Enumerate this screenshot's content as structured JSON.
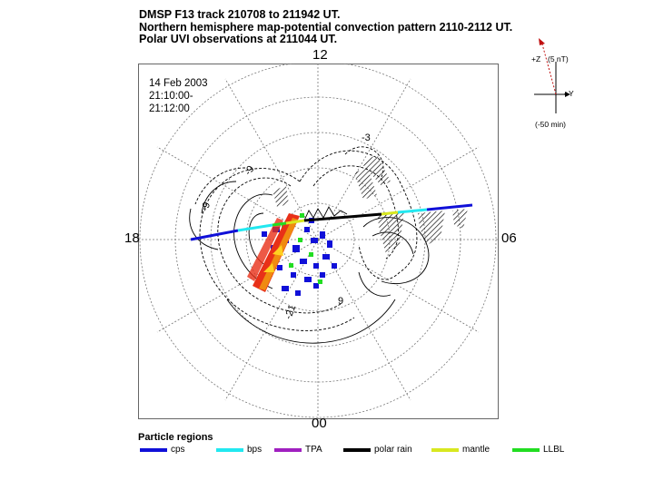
{
  "header": {
    "line1": "DMSP F13 track 210708 to 211942 UT.",
    "line2": "Northern hemisphere map-potential convection pattern 2110-2112 UT.",
    "line3": "Polar UVI observations at 211044 UT."
  },
  "plot": {
    "date": "14 Feb 2003",
    "time_start": "21:10:00-",
    "time_end": "21:12:00",
    "mlt_top": "12",
    "mlt_left": "18",
    "mlt_right": "06",
    "mlt_bottom": "00",
    "contour_labels": [
      "-9",
      "-9",
      "-3",
      "-21",
      "9"
    ],
    "colors": {
      "cps": "#1010d8",
      "bps": "#22e8f0",
      "tpa": "#a020c0",
      "polar_rain": "#000000",
      "mantle": "#d8e820",
      "llbl": "#22dd22",
      "auroral_red": "#e83018",
      "auroral_orange": "#f08a10"
    }
  },
  "axes_inset": {
    "z_label": "+Z",
    "z_value": "(5 nT)",
    "y_label": "+Y",
    "time_label": "(-50 min)"
  },
  "legend": {
    "title": "Particle regions",
    "items": [
      {
        "label": "cps",
        "color": "#1010d8"
      },
      {
        "label": "bps",
        "color": "#22e8f0"
      },
      {
        "label": "TPA",
        "color": "#a020c0"
      },
      {
        "label": "polar rain",
        "color": "#000000"
      },
      {
        "label": "mantle",
        "color": "#d8e820"
      },
      {
        "label": "LLBL",
        "color": "#22dd22"
      }
    ]
  }
}
